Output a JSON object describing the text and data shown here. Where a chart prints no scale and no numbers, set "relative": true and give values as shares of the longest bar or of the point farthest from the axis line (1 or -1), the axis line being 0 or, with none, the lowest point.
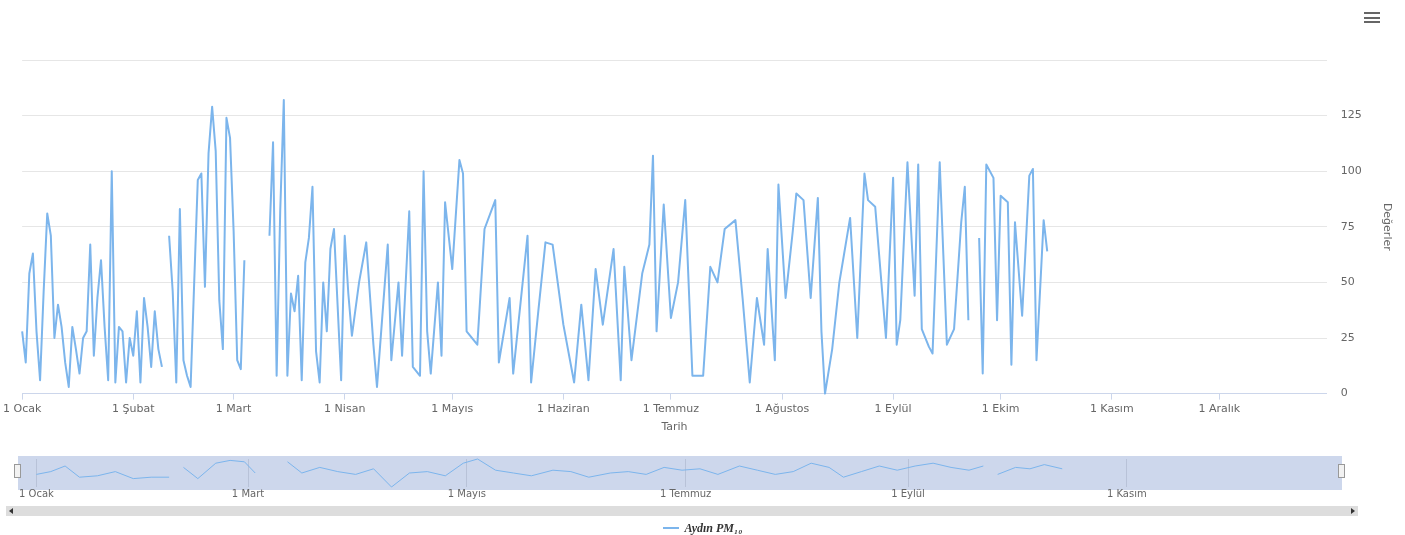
{
  "chart_data": [
    {
      "type": "line",
      "xlabel": "Tarih",
      "ylabel": "Değerler",
      "legend": "bottom",
      "grid": "y",
      "marker": "none",
      "xlim": [
        "--01-01",
        "--12-31"
      ],
      "xticks": [
        {
          "value": "--01-01",
          "label": "1 Ocak"
        },
        {
          "value": "--02-01",
          "label": "1 Şubat"
        },
        {
          "value": "--03-01",
          "label": "1 Mart"
        },
        {
          "value": "--04-01",
          "label": "1 Nisan"
        },
        {
          "value": "--05-01",
          "label": "1 Mayıs"
        },
        {
          "value": "--06-01",
          "label": "1 Haziran"
        },
        {
          "value": "--07-01",
          "label": "1 Temmuz"
        },
        {
          "value": "--08-01",
          "label": "1 Ağustos"
        },
        {
          "value": "--09-01",
          "label": "1 Eylül"
        },
        {
          "value": "--10-01",
          "label": "1 Ekim"
        },
        {
          "value": "--11-01",
          "label": "1 Kasım"
        },
        {
          "value": "--12-01",
          "label": "1 Aralık"
        }
      ],
      "ylim": [
        0,
        150
      ],
      "yticks": [
        0,
        25,
        50,
        75,
        100,
        125,
        {
          "value": 150,
          "label": null
        }
      ],
      "series": [
        {
          "name": "Aydın PM₁₀",
          "color": "#7cb5ec",
          "x": [
            "--01-01",
            "--01-02",
            "--01-03",
            "--01-04",
            "--01-05",
            "--01-06",
            "--01-07",
            "--01-08",
            "--01-09",
            "--01-10",
            "--01-11",
            "--01-12",
            "--01-13",
            "--01-14",
            "--01-15",
            "--01-16",
            "--01-17",
            "--01-18",
            "--01-19",
            "--01-20",
            "--01-21",
            "--01-22",
            "--01-23",
            "--01-24",
            "--01-25",
            "--01-26",
            "--01-27",
            "--01-28",
            "--01-29",
            "--01-30",
            "--01-31",
            "--02-01",
            "--02-02",
            "--02-03",
            "--02-04",
            "--02-05",
            "--02-06",
            "--02-07",
            "--02-08",
            "--02-09",
            "--02-10",
            "--02-11",
            "--02-12",
            "--02-13",
            "--02-14",
            "--02-15",
            "--02-16",
            "--02-17",
            "--02-18",
            "--02-19",
            "--02-20",
            "--02-21",
            "--02-22",
            "--02-23",
            "--02-24",
            "--02-25",
            "--02-26",
            "--02-27",
            "--02-28",
            "--03-01",
            "--03-02",
            "--03-03",
            "--03-04",
            "--03-07",
            "--03-11",
            "--03-12",
            "--03-13",
            "--03-14",
            "--03-15",
            "--03-16",
            "--03-17",
            "--03-18",
            "--03-19",
            "--03-20",
            "--03-21",
            "--03-22",
            "--03-23",
            "--03-24",
            "--03-25",
            "--03-26",
            "--03-27",
            "--03-28",
            "--03-29",
            "--03-30",
            "--03-31",
            "--04-01",
            "--04-02",
            "--04-03",
            "--04-05",
            "--04-07",
            "--04-09",
            "--04-10",
            "--04-13",
            "--04-14",
            "--04-16",
            "--04-17",
            "--04-19",
            "--04-20",
            "--04-22",
            "--04-23",
            "--04-24",
            "--04-25",
            "--04-27",
            "--04-28",
            "--04-29",
            "--05-01",
            "--05-03",
            "--05-04",
            "--05-05",
            "--05-08",
            "--05-10",
            "--05-13",
            "--05-14",
            "--05-17",
            "--05-18",
            "--05-22",
            "--05-23",
            "--05-25",
            "--05-27",
            "--05-29",
            "--06-01",
            "--06-04",
            "--06-06",
            "--06-08",
            "--06-10",
            "--06-12",
            "--06-15",
            "--06-17",
            "--06-18",
            "--06-20",
            "--06-23",
            "--06-25",
            "--06-26",
            "--06-27",
            "--06-29",
            "--07-01",
            "--07-03",
            "--07-05",
            "--07-07",
            "--07-10",
            "--07-12",
            "--07-14",
            "--07-16",
            "--07-19",
            "--07-21",
            "--07-23",
            "--07-25",
            "--07-27",
            "--07-28",
            "--07-30",
            "--07-31",
            "--08-02",
            "--08-04",
            "--08-05",
            "--08-07",
            "--08-09",
            "--08-11",
            "--08-12",
            "--08-13",
            "--08-15",
            "--08-17",
            "--08-20",
            "--08-22",
            "--08-24",
            "--08-25",
            "--08-27",
            "--08-30",
            "--09-01",
            "--09-02",
            "--09-03",
            "--09-05",
            "--09-07",
            "--09-08",
            "--09-09",
            "--09-11",
            "--09-12",
            "--09-14",
            "--09-16",
            "--09-18",
            "--09-20",
            "--09-21",
            "--09-22",
            "--09-23",
            "--09-25",
            "--09-26",
            "--09-27",
            "--09-29",
            "--09-30",
            "--10-01",
            "--10-03",
            "--10-04",
            "--10-05",
            "--10-07",
            "--10-09",
            "--10-10",
            "--10-11",
            "--10-13",
            "--10-14"
          ],
          "values": [
            28,
            14,
            54,
            63,
            28,
            6,
            46,
            81,
            71,
            25,
            40,
            30,
            14,
            3,
            30,
            20,
            9,
            25,
            28,
            67,
            17,
            43,
            60,
            30,
            6,
            100,
            5,
            30,
            28,
            5,
            25,
            17,
            37,
            5,
            43,
            30,
            12,
            37,
            20,
            12,
            null,
            71,
            46,
            5,
            83,
            15,
            8,
            3,
            50,
            96,
            99,
            48,
            108,
            129,
            109,
            42,
            20,
            124,
            115,
            73,
            15,
            11,
            60,
            null,
            71,
            113,
            8,
            82,
            132,
            8,
            45,
            37,
            53,
            6,
            59,
            70,
            93,
            19,
            5,
            50,
            28,
            65,
            74,
            40,
            6,
            71,
            45,
            26,
            50,
            68,
            22,
            3,
            67,
            15,
            50,
            17,
            82,
            12,
            8,
            100,
            28,
            9,
            50,
            17,
            86,
            56,
            105,
            99,
            28,
            22,
            74,
            87,
            14,
            43,
            9,
            71,
            5,
            37,
            68,
            67,
            31,
            5,
            40,
            6,
            56,
            31,
            65,
            6,
            57,
            15,
            54,
            67,
            107,
            28,
            85,
            34,
            50,
            87,
            8,
            8,
            57,
            50,
            74,
            78,
            43,
            5,
            43,
            22,
            65,
            15,
            94,
            43,
            73,
            90,
            87,
            43,
            88,
            28,
            0,
            20,
            50,
            79,
            25,
            99,
            87,
            84,
            25,
            97,
            22,
            33,
            104,
            44,
            103,
            29,
            21,
            18,
            104,
            22,
            29,
            77,
            93,
            33,
            null,
            70,
            9,
            103,
            97,
            33,
            89,
            86,
            13,
            77,
            35,
            98,
            101,
            15,
            78,
            64
          ]
        }
      ]
    },
    {
      "type": "line",
      "relative": true,
      "grid": "x",
      "marker": "none",
      "xlim": [
        "--01-01",
        "--12-31"
      ],
      "xticks": [
        {
          "value": "--01-01",
          "label": "1 Ocak"
        },
        {
          "value": "--03-01",
          "label": "1 Mart"
        },
        {
          "value": "--05-01",
          "label": "1 Mayıs"
        },
        {
          "value": "--07-01",
          "label": "1 Temmuz"
        },
        {
          "value": "--09-01",
          "label": "1 Eylül"
        },
        {
          "value": "--11-01",
          "label": "1 Kasım"
        }
      ],
      "series": [
        {
          "color": "#7cb5ec",
          "x": [
            "--01-01",
            "--01-05",
            "--01-09",
            "--01-13",
            "--01-18",
            "--01-23",
            "--01-28",
            "--02-02",
            "--02-07",
            "--02-09",
            "--02-11",
            "--02-15",
            "--02-20",
            "--02-24",
            "--02-28",
            "--03-03",
            "--03-07",
            "--03-12",
            "--03-16",
            "--03-21",
            "--03-26",
            "--03-31",
            "--04-05",
            "--04-10",
            "--04-15",
            "--04-20",
            "--04-25",
            "--04-30",
            "--05-04",
            "--05-09",
            "--05-14",
            "--05-19",
            "--05-25",
            "--05-30",
            "--06-04",
            "--06-10",
            "--06-15",
            "--06-20",
            "--06-25",
            "--06-30",
            "--07-05",
            "--07-10",
            "--07-16",
            "--07-21",
            "--07-26",
            "--07-31",
            "--08-05",
            "--08-10",
            "--08-14",
            "--08-19",
            "--08-24",
            "--08-29",
            "--09-03",
            "--09-08",
            "--09-13",
            "--09-18",
            "--09-22",
            "--09-24",
            "--09-26",
            "--10-01",
            "--10-05",
            "--10-09",
            "--10-14"
          ],
          "values": [
            0.45,
            0.55,
            0.75,
            0.35,
            0.4,
            0.55,
            0.3,
            0.35,
            0.35,
            null,
            0.7,
            0.3,
            0.85,
            0.95,
            0.9,
            0.5,
            null,
            0.9,
            0.5,
            0.7,
            0.55,
            0.45,
            0.65,
            0,
            0.5,
            0.55,
            0.4,
            0.85,
            1,
            0.6,
            0.5,
            0.4,
            0.6,
            0.55,
            0.35,
            0.5,
            0.55,
            0.45,
            0.7,
            0.6,
            0.65,
            0.45,
            0.75,
            0.6,
            0.45,
            0.55,
            0.85,
            0.7,
            0.35,
            0.55,
            0.75,
            0.6,
            0.75,
            0.85,
            0.7,
            0.6,
            0.75,
            null,
            0.45,
            0.7,
            0.65,
            0.8,
            0.65
          ]
        }
      ]
    }
  ]
}
